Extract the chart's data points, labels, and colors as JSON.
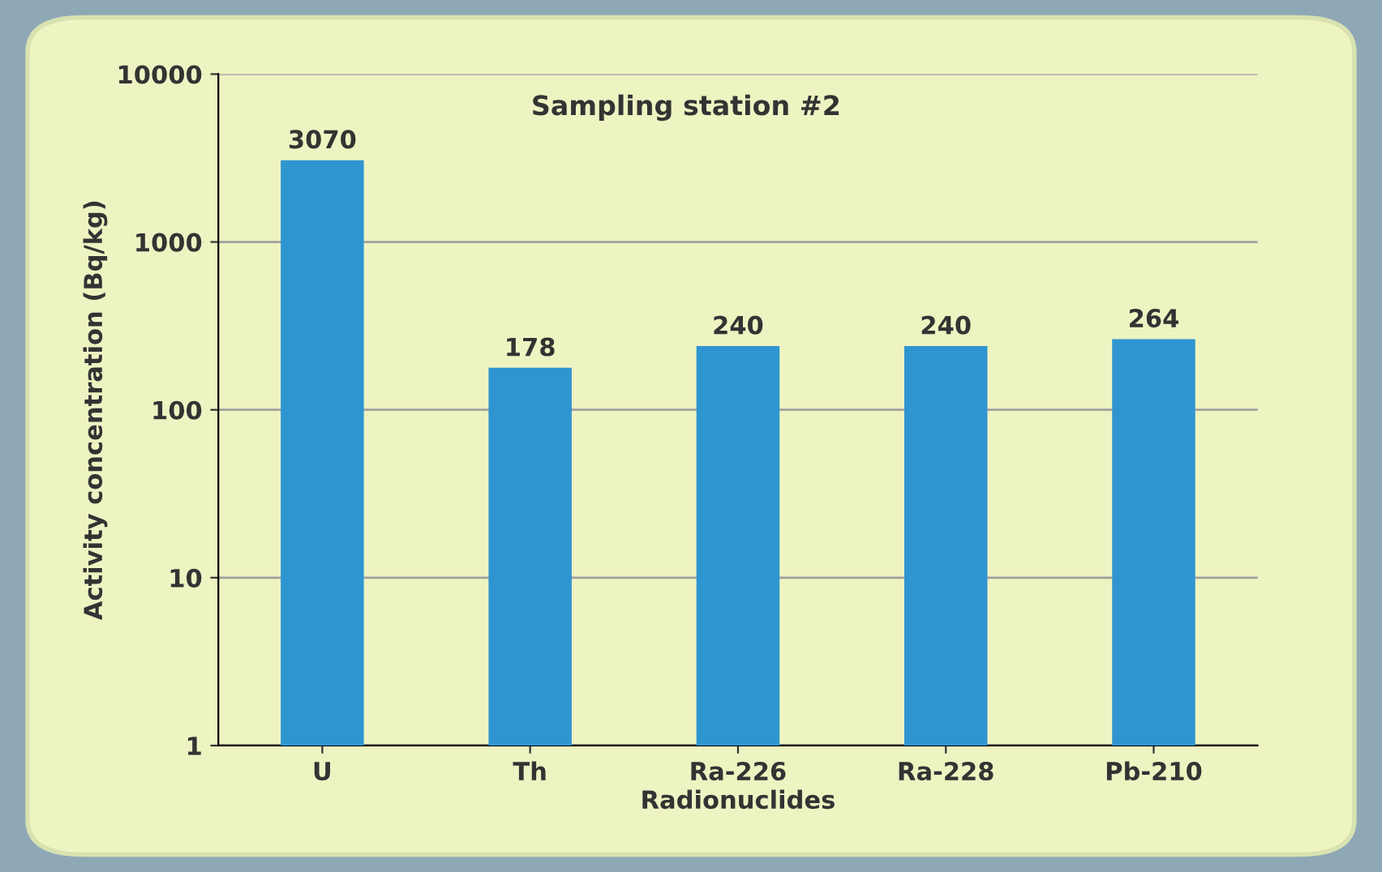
{
  "chart_data": {
    "type": "bar",
    "title": "Sampling station #2",
    "xlabel": "Radionuclides",
    "ylabel": "Activity concentration (Bq/kg)",
    "categories": [
      "U",
      "Th",
      "Ra-226",
      "Ra-228",
      "Pb-210"
    ],
    "values": [
      3070,
      178,
      240,
      240,
      264
    ],
    "color": "#2f95d1",
    "log": "y",
    "ylim": [
      1,
      10000
    ],
    "yticks": [
      1,
      10,
      100,
      1000,
      10000
    ],
    "grid": "y",
    "data_labels": true
  }
}
